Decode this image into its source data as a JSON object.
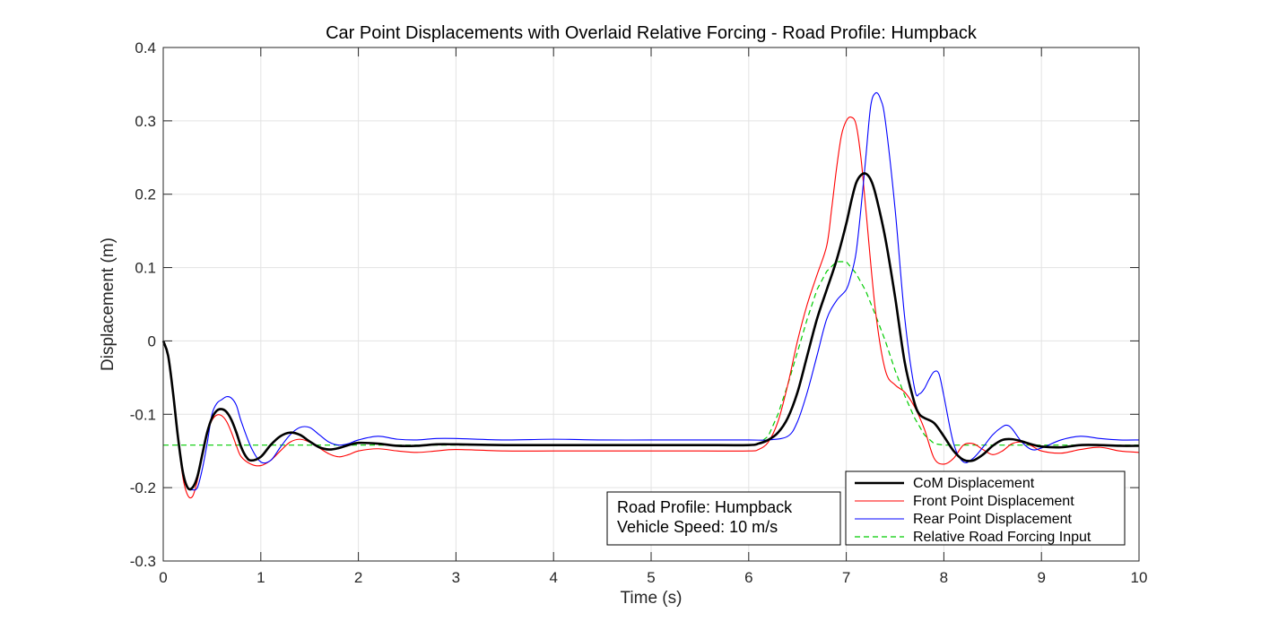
{
  "chart_data": {
    "type": "line",
    "title": "Car Point Displacements with Overlaid Relative Forcing - Road Profile: Humpback",
    "xlabel": "Time (s)",
    "ylabel": "Displacement (m)",
    "xlim": [
      0,
      10
    ],
    "ylim": [
      -0.3,
      0.4
    ],
    "xticks": [
      0,
      1,
      2,
      3,
      4,
      5,
      6,
      7,
      8,
      9,
      10
    ],
    "yticks": [
      -0.3,
      -0.2,
      -0.1,
      0,
      0.1,
      0.2,
      0.3,
      0.4
    ],
    "xtick_labels": [
      "0",
      "1",
      "2",
      "3",
      "4",
      "5",
      "6",
      "7",
      "8",
      "9",
      "10"
    ],
    "ytick_labels": [
      "-0.3",
      "-0.2",
      "-0.1",
      "0",
      "0.1",
      "0.2",
      "0.3",
      "0.4"
    ],
    "grid": true,
    "legend_position": "bottom-right",
    "annotation": [
      "Road Profile: Humpback",
      "Vehicle Speed: 10 m/s"
    ],
    "series": [
      {
        "name": "CoM Displacement",
        "color": "#000000",
        "style": "solid-thick",
        "x": [
          0,
          0.05,
          0.1,
          0.15,
          0.2,
          0.25,
          0.3,
          0.35,
          0.4,
          0.45,
          0.5,
          0.55,
          0.6,
          0.65,
          0.7,
          0.75,
          0.8,
          0.85,
          0.9,
          1.0,
          1.1,
          1.2,
          1.3,
          1.4,
          1.5,
          1.6,
          1.7,
          1.8,
          1.9,
          2.0,
          2.2,
          2.4,
          2.6,
          2.8,
          3.0,
          3.5,
          4.0,
          4.5,
          5.0,
          5.5,
          6.0,
          6.1,
          6.2,
          6.3,
          6.4,
          6.5,
          6.6,
          6.7,
          6.8,
          6.9,
          7.0,
          7.05,
          7.1,
          7.15,
          7.2,
          7.25,
          7.3,
          7.4,
          7.5,
          7.6,
          7.7,
          7.75,
          7.8,
          7.9,
          8.0,
          8.1,
          8.2,
          8.3,
          8.4,
          8.5,
          8.6,
          8.7,
          8.8,
          8.9,
          9.0,
          9.2,
          9.4,
          9.6,
          9.8,
          10.0
        ],
        "y": [
          0,
          -0.02,
          -0.07,
          -0.13,
          -0.178,
          -0.2,
          -0.2,
          -0.185,
          -0.155,
          -0.125,
          -0.105,
          -0.095,
          -0.093,
          -0.097,
          -0.108,
          -0.125,
          -0.145,
          -0.158,
          -0.163,
          -0.158,
          -0.142,
          -0.13,
          -0.125,
          -0.128,
          -0.137,
          -0.145,
          -0.148,
          -0.146,
          -0.142,
          -0.139,
          -0.14,
          -0.143,
          -0.143,
          -0.141,
          -0.141,
          -0.142,
          -0.142,
          -0.142,
          -0.142,
          -0.142,
          -0.142,
          -0.14,
          -0.135,
          -0.125,
          -0.105,
          -0.07,
          -0.02,
          0.03,
          0.07,
          0.11,
          0.16,
          0.19,
          0.215,
          0.226,
          0.228,
          0.22,
          0.2,
          0.14,
          0.06,
          -0.03,
          -0.085,
          -0.1,
          -0.105,
          -0.112,
          -0.13,
          -0.15,
          -0.162,
          -0.163,
          -0.155,
          -0.143,
          -0.135,
          -0.134,
          -0.137,
          -0.141,
          -0.144,
          -0.145,
          -0.142,
          -0.142,
          -0.143,
          -0.143
        ]
      },
      {
        "name": "Front Point Displacement",
        "color": "#ff0000",
        "style": "solid-thin",
        "x": [
          0,
          0.05,
          0.1,
          0.15,
          0.2,
          0.25,
          0.3,
          0.35,
          0.4,
          0.45,
          0.5,
          0.55,
          0.6,
          0.65,
          0.7,
          0.75,
          0.8,
          0.9,
          1.0,
          1.1,
          1.2,
          1.3,
          1.4,
          1.5,
          1.6,
          1.7,
          1.8,
          1.9,
          2.0,
          2.2,
          2.4,
          2.6,
          2.8,
          3.0,
          3.5,
          4.0,
          4.5,
          5.0,
          5.5,
          6.0,
          6.1,
          6.2,
          6.3,
          6.4,
          6.5,
          6.6,
          6.7,
          6.8,
          6.85,
          6.9,
          6.95,
          7.0,
          7.05,
          7.1,
          7.15,
          7.2,
          7.3,
          7.4,
          7.5,
          7.6,
          7.7,
          7.8,
          7.9,
          8.0,
          8.1,
          8.2,
          8.3,
          8.4,
          8.5,
          8.6,
          8.7,
          8.8,
          8.9,
          9.0,
          9.2,
          9.4,
          9.6,
          9.8,
          10.0
        ],
        "y": [
          0,
          -0.02,
          -0.07,
          -0.13,
          -0.185,
          -0.21,
          -0.212,
          -0.19,
          -0.155,
          -0.125,
          -0.108,
          -0.101,
          -0.102,
          -0.11,
          -0.125,
          -0.143,
          -0.158,
          -0.168,
          -0.17,
          -0.163,
          -0.15,
          -0.138,
          -0.134,
          -0.138,
          -0.146,
          -0.154,
          -0.158,
          -0.155,
          -0.15,
          -0.147,
          -0.15,
          -0.152,
          -0.15,
          -0.148,
          -0.15,
          -0.15,
          -0.15,
          -0.15,
          -0.15,
          -0.15,
          -0.148,
          -0.138,
          -0.11,
          -0.06,
          0.0,
          0.05,
          0.09,
          0.13,
          0.18,
          0.235,
          0.28,
          0.3,
          0.305,
          0.295,
          0.25,
          0.18,
          0.04,
          -0.04,
          -0.06,
          -0.07,
          -0.09,
          -0.12,
          -0.16,
          -0.168,
          -0.16,
          -0.142,
          -0.14,
          -0.148,
          -0.155,
          -0.15,
          -0.14,
          -0.138,
          -0.143,
          -0.15,
          -0.153,
          -0.148,
          -0.145,
          -0.15,
          -0.152
        ]
      },
      {
        "name": "Rear Point Displacement",
        "color": "#0000ff",
        "style": "solid-thin",
        "x": [
          0,
          0.05,
          0.1,
          0.15,
          0.2,
          0.25,
          0.3,
          0.35,
          0.4,
          0.45,
          0.5,
          0.55,
          0.6,
          0.65,
          0.7,
          0.75,
          0.8,
          0.9,
          1.0,
          1.1,
          1.2,
          1.3,
          1.4,
          1.5,
          1.6,
          1.7,
          1.8,
          1.9,
          2.0,
          2.2,
          2.4,
          2.6,
          2.8,
          3.0,
          3.5,
          4.0,
          4.5,
          5.0,
          5.5,
          6.0,
          6.2,
          6.4,
          6.5,
          6.6,
          6.7,
          6.8,
          6.9,
          7.0,
          7.05,
          7.1,
          7.15,
          7.2,
          7.25,
          7.3,
          7.35,
          7.4,
          7.5,
          7.6,
          7.7,
          7.75,
          7.8,
          7.85,
          7.9,
          7.95,
          8.0,
          8.1,
          8.2,
          8.3,
          8.4,
          8.5,
          8.6,
          8.65,
          8.7,
          8.8,
          8.9,
          9.0,
          9.2,
          9.4,
          9.6,
          9.8,
          10.0
        ],
        "y": [
          0,
          -0.02,
          -0.07,
          -0.13,
          -0.18,
          -0.2,
          -0.203,
          -0.2,
          -0.175,
          -0.14,
          -0.1,
          -0.085,
          -0.08,
          -0.076,
          -0.078,
          -0.088,
          -0.11,
          -0.145,
          -0.165,
          -0.163,
          -0.145,
          -0.128,
          -0.118,
          -0.118,
          -0.128,
          -0.138,
          -0.142,
          -0.14,
          -0.135,
          -0.13,
          -0.134,
          -0.135,
          -0.133,
          -0.133,
          -0.135,
          -0.134,
          -0.135,
          -0.135,
          -0.135,
          -0.135,
          -0.135,
          -0.13,
          -0.11,
          -0.07,
          -0.02,
          0.03,
          0.055,
          0.07,
          0.09,
          0.12,
          0.18,
          0.25,
          0.32,
          0.338,
          0.33,
          0.3,
          0.18,
          0.03,
          -0.065,
          -0.072,
          -0.065,
          -0.052,
          -0.042,
          -0.045,
          -0.075,
          -0.14,
          -0.165,
          -0.16,
          -0.145,
          -0.128,
          -0.117,
          -0.115,
          -0.12,
          -0.138,
          -0.148,
          -0.146,
          -0.135,
          -0.13,
          -0.133,
          -0.135,
          -0.135
        ]
      },
      {
        "name": "Relative Road Forcing Input",
        "color": "#00cc00",
        "style": "dashed",
        "x": [
          0,
          6.0,
          6.1,
          6.2,
          6.3,
          6.4,
          6.5,
          6.6,
          6.7,
          6.8,
          6.9,
          7.0,
          7.1,
          7.2,
          7.3,
          7.4,
          7.5,
          7.6,
          7.7,
          7.8,
          7.9,
          8.0,
          10.0
        ],
        "y": [
          -0.142,
          -0.142,
          -0.14,
          -0.13,
          -0.1,
          -0.06,
          -0.015,
          0.03,
          0.07,
          0.095,
          0.108,
          0.108,
          0.092,
          0.068,
          0.035,
          0.0,
          -0.04,
          -0.075,
          -0.105,
          -0.128,
          -0.14,
          -0.142,
          -0.142
        ]
      }
    ]
  }
}
